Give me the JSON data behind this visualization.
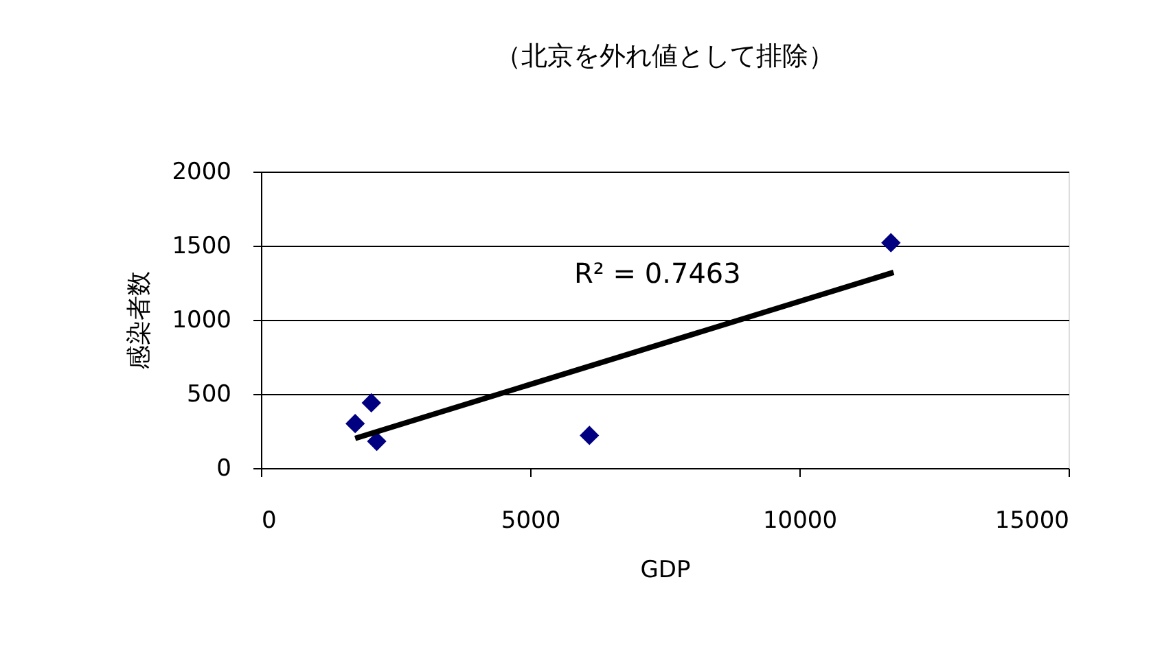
{
  "chart_data": {
    "type": "scatter",
    "title": "（北京を外れ値として排除）",
    "xlabel": "GDP",
    "ylabel": "感染者数",
    "x": [
      1750,
      2050,
      2150,
      6100,
      11700
    ],
    "series": [
      {
        "color": "#000080",
        "marker": "diamond",
        "values": [
          300,
          440,
          180,
          220,
          1520
        ]
      },
      {
        "type": "line",
        "color": "#000000",
        "marker": "none",
        "line_style": "solid",
        "x": [
          1750,
          11750
        ],
        "values": [
          200,
          1320
        ]
      }
    ],
    "annotations": [
      "R² = 0.7463"
    ],
    "xlim": [
      0,
      15000
    ],
    "xticks": [
      0,
      5000,
      10000,
      15000
    ],
    "ylim": [
      0,
      2000
    ],
    "yticks": [
      0,
      500,
      1000,
      1500,
      2000
    ],
    "grid": "y"
  }
}
